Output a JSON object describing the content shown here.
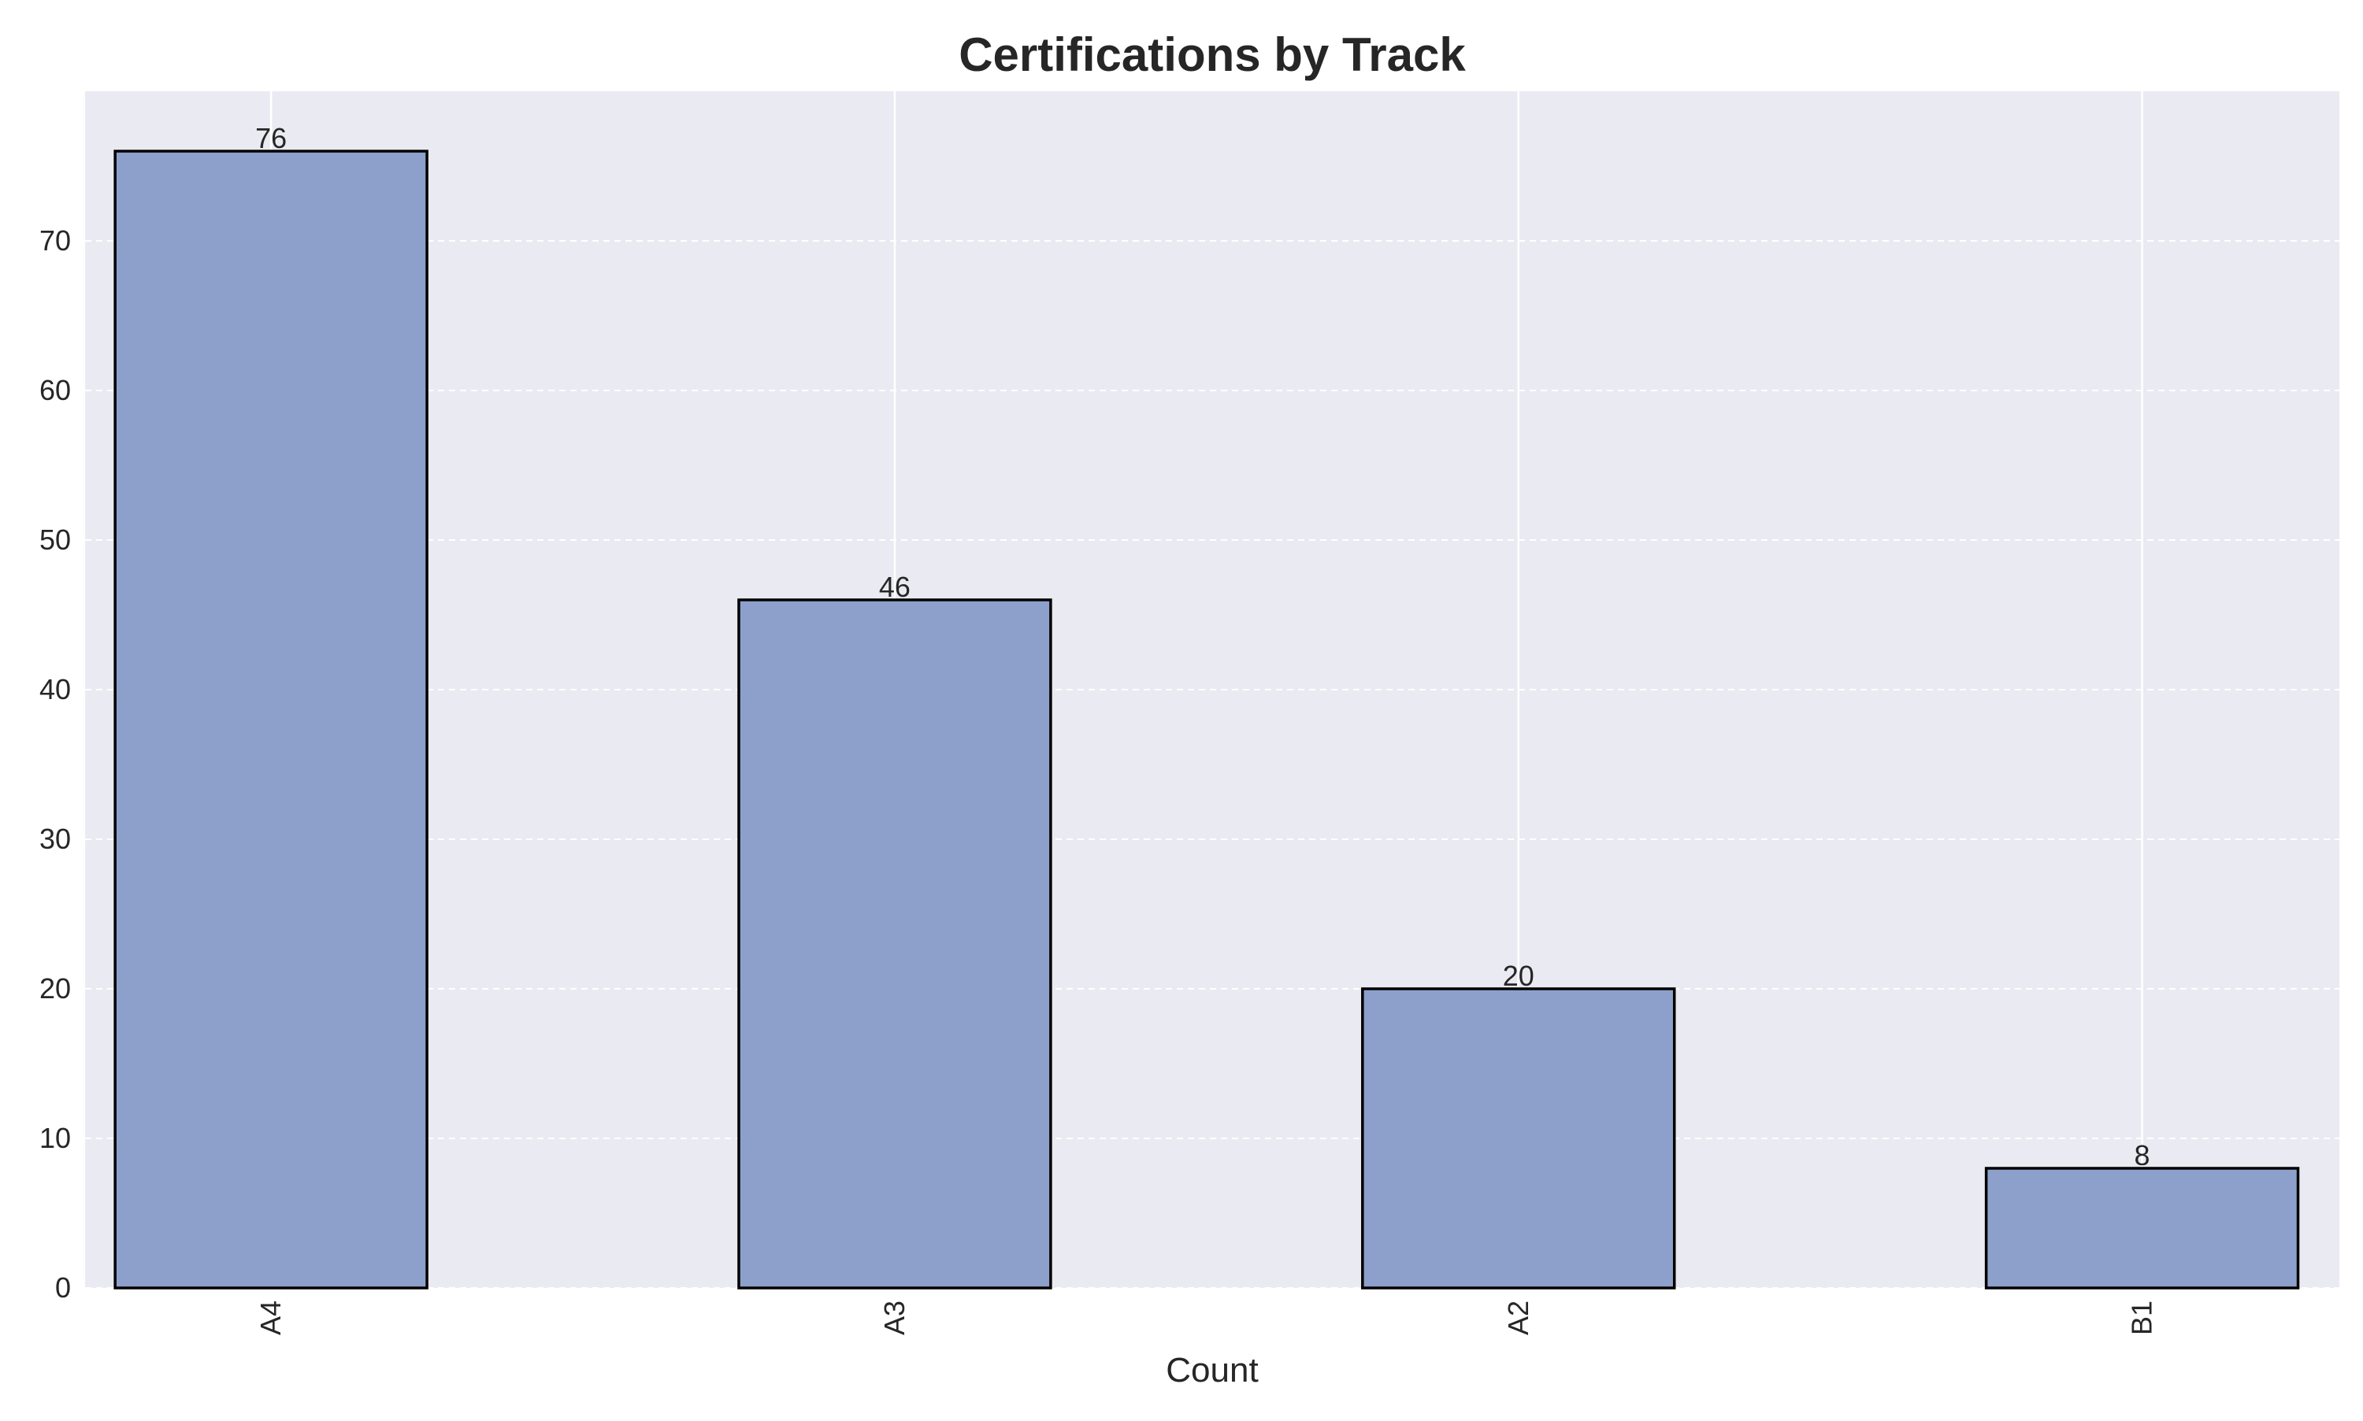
{
  "chart_data": {
    "type": "bar",
    "title": "Certifications by Track",
    "xlabel": "Count",
    "ylabel": "",
    "categories": [
      "A4",
      "A3",
      "A2",
      "B1"
    ],
    "values": [
      76,
      46,
      20,
      8
    ],
    "ylim": [
      0,
      80
    ],
    "yticks": [
      0,
      10,
      20,
      30,
      40,
      50,
      60,
      70
    ],
    "grid": true,
    "legend": "none",
    "colors": {
      "bar_fill": "#8da0cb",
      "bar_edge": "#000000",
      "plot_background": "#eaeaf2",
      "grid": "#ffffff"
    }
  }
}
